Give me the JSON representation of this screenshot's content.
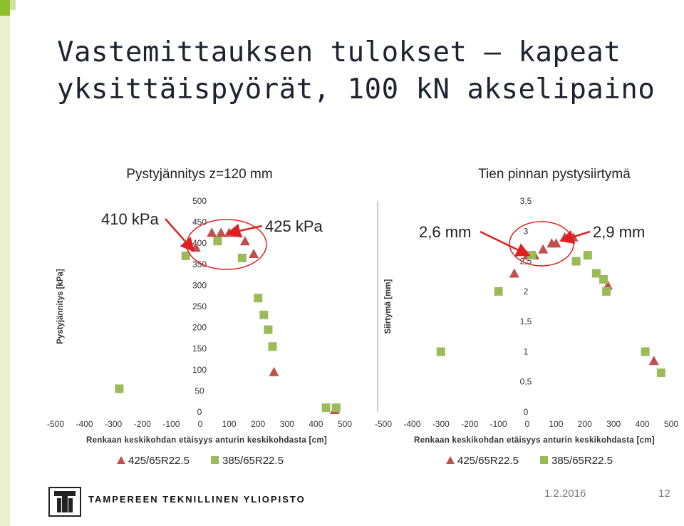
{
  "slide": {
    "title": "Vastemittauksen tulokset – kapeat yksittäispyörät, 100 kN akselipaino",
    "footer_date": "1.2.2016",
    "footer_page": "12",
    "logo_text": "TAMPEREEN TEKNILLINEN YLIOPISTO",
    "colors": {
      "triangle": "#c0504d",
      "square": "#9bbb59",
      "arrow": "#e02020",
      "ellipse": "#e02020"
    }
  },
  "chart_data": [
    {
      "type": "scatter",
      "title": "Pystyjännitys z=120 mm",
      "xlabel": "Renkaan keskikohdan etäisyys anturin keskikohdasta [cm]",
      "ylabel": "Pystyjännitys [kPa]",
      "xlim": [
        -500,
        500
      ],
      "ylim": [
        0,
        500
      ],
      "x_ticks": [
        "-500",
        "-400",
        "-300",
        "-200",
        "-100",
        "0",
        "100",
        "200",
        "300",
        "400",
        "500"
      ],
      "y_ticks": [
        "0",
        "50",
        "100",
        "150",
        "200",
        "250",
        "300",
        "350",
        "400",
        "450",
        "500"
      ],
      "grid": false,
      "series": [
        {
          "name": "425/65R22.5",
          "marker": "triangle",
          "points": [
            [
              -15,
              390
            ],
            [
              40,
              425
            ],
            [
              72,
              425
            ],
            [
              100,
              425
            ],
            [
              130,
              425
            ],
            [
              155,
              405
            ],
            [
              185,
              375
            ],
            [
              255,
              95
            ],
            [
              465,
              5
            ]
          ]
        },
        {
          "name": "385/65R22.5",
          "marker": "square",
          "points": [
            0,
            0
          ]
        },
        {
          "name": "385/65R22.5",
          "marker": "square",
          "points": [
            [
              -280,
              55
            ],
            [
              -50,
              370
            ],
            [
              60,
              405
            ],
            [
              145,
              365
            ],
            [
              200,
              270
            ],
            [
              220,
              230
            ],
            [
              235,
              195
            ],
            [
              250,
              155
            ],
            [
              435,
              10
            ],
            [
              470,
              10
            ]
          ]
        }
      ],
      "annotations": [
        {
          "text": "410 kPa",
          "target": [
            -15,
            390
          ]
        },
        {
          "text": "425 kPa",
          "target": [
            100,
            425
          ]
        }
      ]
    },
    {
      "type": "scatter",
      "title": "Tien pinnan pystysiirtymä",
      "xlabel": "Renkaan keskikohdan etäisyys anturin keskikohdasta [cm]",
      "ylabel": "Siirtymä [mm]",
      "xlim": [
        -500,
        500
      ],
      "ylim": [
        0,
        3.5
      ],
      "x_ticks": [
        "-500",
        "-400",
        "-300",
        "-200",
        "-100",
        "0",
        "100",
        "200",
        "300",
        "400",
        "500"
      ],
      "y_ticks": [
        "0",
        "0,5",
        "1",
        "1,5",
        "2",
        "2,5",
        "3",
        "3,5"
      ],
      "grid": false,
      "series": [
        {
          "name": "425/65R22.5",
          "marker": "triangle",
          "points": [
            [
              -45,
              2.3
            ],
            [
              0,
              2.6
            ],
            [
              25,
              2.6
            ],
            [
              55,
              2.7
            ],
            [
              85,
              2.8
            ],
            [
              100,
              2.8
            ],
            [
              130,
              2.9
            ],
            [
              160,
              2.9
            ],
            [
              280,
              2.1
            ],
            [
              440,
              0.85
            ]
          ]
        },
        {
          "name": "385/65R22.5",
          "marker": "square",
          "points": [
            [
              -300,
              1.0
            ],
            [
              -100,
              2.0
            ],
            [
              15,
              2.6
            ],
            [
              170,
              2.5
            ],
            [
              210,
              2.6
            ],
            [
              240,
              2.3
            ],
            [
              265,
              2.2
            ],
            [
              275,
              2.0
            ],
            [
              410,
              1.0
            ],
            [
              465,
              0.65
            ]
          ]
        }
      ],
      "annotations": [
        {
          "text": "2,6 mm",
          "target": [
            25,
            2.6
          ]
        },
        {
          "text": "2,9 mm",
          "target": [
            160,
            2.9
          ]
        }
      ]
    }
  ]
}
